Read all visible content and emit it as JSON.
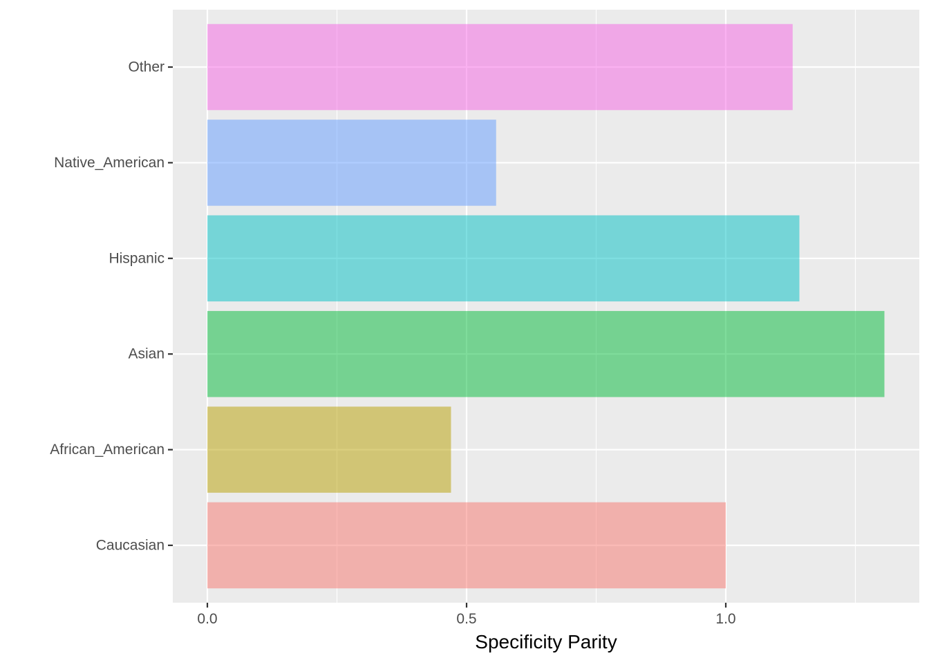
{
  "chart_data": {
    "type": "bar",
    "orientation": "horizontal",
    "title": "",
    "xlabel": "Specificity Parity",
    "ylabel": "",
    "categories": [
      "Caucasian",
      "African_American",
      "Asian",
      "Hispanic",
      "Native_American",
      "Other"
    ],
    "values": [
      1.0,
      0.47,
      1.306,
      1.142,
      0.557,
      1.129
    ],
    "colors": [
      "#F8766D",
      "#B79F00",
      "#00BA38",
      "#00BFC4",
      "#619CFF",
      "#F564E3"
    ],
    "bar_opacity": 0.5,
    "xlim": [
      -0.065,
      1.365
    ],
    "x_ticks": [
      0.0,
      0.5,
      1.0
    ],
    "x_tick_labels": [
      "0.0",
      "0.5",
      "1.0"
    ],
    "x_minor_ticks": [
      0.25,
      0.75,
      1.25
    ],
    "grid": true,
    "legend": "none",
    "panel_background": "#EBEBEB",
    "grid_color": "#FFFFFF"
  }
}
